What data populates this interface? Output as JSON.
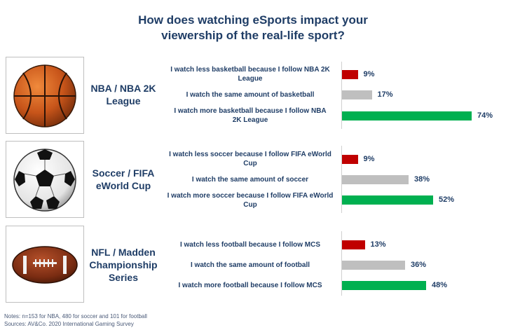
{
  "title_line1": "How does watching eSports impact your",
  "title_line2": "viewership of the real-life sport?",
  "colors": {
    "less": "#c00000",
    "same": "#bfbfbf",
    "more": "#00b050"
  },
  "chart_data": {
    "type": "bar",
    "orientation": "horizontal",
    "groups": [
      {
        "name_lines": [
          "NBA / NBA 2K",
          "League"
        ],
        "icon": "basketball-icon",
        "bars": [
          {
            "label_lines": [
              "I watch less basketball because I follow NBA 2K",
              "League"
            ],
            "value": 9,
            "value_label": "9%",
            "category": "less"
          },
          {
            "label_lines": [
              "I watch the same amount of basketball"
            ],
            "value": 17,
            "value_label": "17%",
            "category": "same"
          },
          {
            "label_lines": [
              "I watch more basketball because I follow NBA",
              "2K League"
            ],
            "value": 74,
            "value_label": "74%",
            "category": "more"
          }
        ]
      },
      {
        "name_lines": [
          "Soccer / FIFA",
          "eWorld Cup"
        ],
        "icon": "soccer-ball-icon",
        "bars": [
          {
            "label_lines": [
              "I watch less soccer because I follow FIFA eWorld",
              "Cup"
            ],
            "value": 9,
            "value_label": "9%",
            "category": "less"
          },
          {
            "label_lines": [
              "I watch the same amount of soccer"
            ],
            "value": 38,
            "value_label": "38%",
            "category": "same"
          },
          {
            "label_lines": [
              "I watch more soccer because I follow FIFA eWorld",
              "Cup"
            ],
            "value": 52,
            "value_label": "52%",
            "category": "more"
          }
        ]
      },
      {
        "name_lines": [
          "NFL / Madden",
          "Championship",
          "Series"
        ],
        "icon": "american-football-icon",
        "bars": [
          {
            "label_lines": [
              "I watch less football because I follow MCS"
            ],
            "value": 13,
            "value_label": "13%",
            "category": "less"
          },
          {
            "label_lines": [
              "I watch the same amount of football"
            ],
            "value": 36,
            "value_label": "36%",
            "category": "same"
          },
          {
            "label_lines": [
              "I watch more football because I follow MCS"
            ],
            "value": 48,
            "value_label": "48%",
            "category": "more"
          }
        ]
      }
    ],
    "xlim": [
      0,
      100
    ]
  },
  "notes_line1": "Notes: n=153 for NBA, 480 for soccer and 101 for football",
  "notes_line2": "Sources: AV&Co. 2020 International Gaming Survey"
}
